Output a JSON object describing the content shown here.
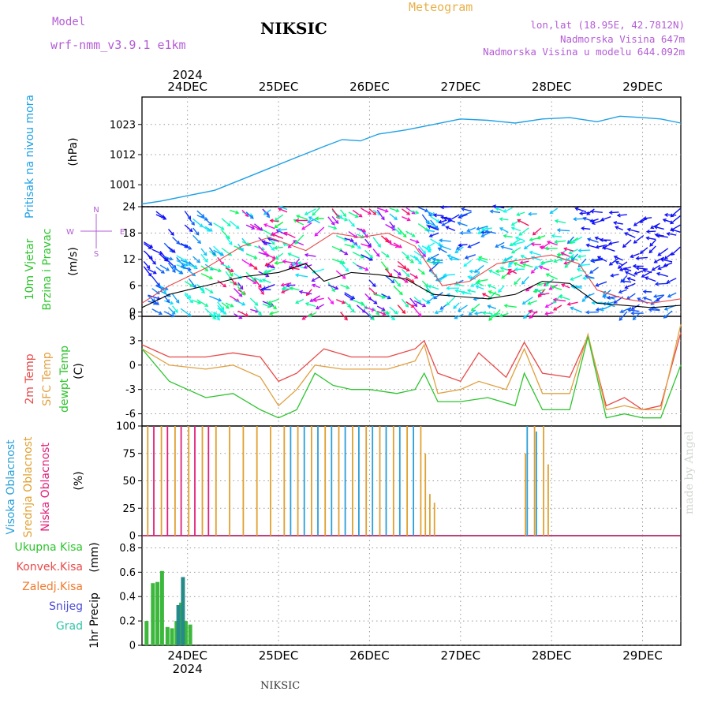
{
  "header": {
    "model_label": "Model",
    "model_value": "wrf-nmm_v3.9.1 e1km",
    "station": "NIKSIC",
    "meteogram": "Meteogram",
    "lonlat": "lon,lat (18.95E, 42.7812N)",
    "elevation": "Nadmorska Visina 647m",
    "elevation_model": "Nadmorska Visina u modelu 644.092m"
  },
  "footer": {
    "station": "NIKSIC",
    "credit": "made by Angel"
  },
  "time_axis": {
    "days": [
      "24DEC",
      "25DEC",
      "26DEC",
      "27DEC",
      "28DEC",
      "29DEC"
    ],
    "year": "2024",
    "start_offset_days": -0.5,
    "end_offset_days": 5.42
  },
  "colors": {
    "pressure": "#1ea0e6",
    "temp2m": "#e84a4a",
    "sfc": "#e0a040",
    "dewpt": "#2ec42e",
    "high_cloud": "#2a9fd8",
    "mid_cloud": "#e0a030",
    "low_cloud": "#e0207a",
    "precip_total": "#3cb83c",
    "precip_snow": "#268a8a",
    "compass": "#b45cd6"
  },
  "chart_data": [
    {
      "type": "line",
      "title": "",
      "ylabel": "Pritisak na nivou mora",
      "unit": "(hPa)",
      "yticks": [
        1001,
        1012,
        1023
      ],
      "ylim": [
        993,
        1033
      ],
      "grid": true,
      "series": [
        {
          "name": "Pritisak na nivou mora",
          "points": [
            [
              -0.5,
              994.0
            ],
            [
              -0.3,
              995.0
            ],
            [
              0.0,
              997.0
            ],
            [
              0.3,
              999.0
            ],
            [
              0.6,
              1003.0
            ],
            [
              0.9,
              1007.0
            ],
            [
              1.2,
              1011.0
            ],
            [
              1.5,
              1015.0
            ],
            [
              1.7,
              1017.5
            ],
            [
              1.9,
              1017.0
            ],
            [
              2.1,
              1019.5
            ],
            [
              2.4,
              1021.0
            ],
            [
              2.7,
              1023.0
            ],
            [
              3.0,
              1025.0
            ],
            [
              3.3,
              1024.5
            ],
            [
              3.6,
              1023.5
            ],
            [
              3.9,
              1025.0
            ],
            [
              4.2,
              1025.5
            ],
            [
              4.5,
              1024.0
            ],
            [
              4.75,
              1026.0
            ],
            [
              5.0,
              1025.5
            ],
            [
              5.2,
              1025.0
            ],
            [
              5.42,
              1023.5
            ]
          ]
        }
      ]
    },
    {
      "type": "line",
      "title": "",
      "ylabel": "10m Vjetar Brzina i Pravac",
      "unit": "(m/s)",
      "yticks": [
        0,
        6,
        12,
        18,
        24
      ],
      "ylim": [
        -1,
        24
      ],
      "grid": true,
      "compass_labels": [
        "N",
        "W",
        "E",
        "S"
      ],
      "series": [
        {
          "name": "Brzina",
          "points": [
            [
              -0.5,
              1.0
            ],
            [
              -0.2,
              4.0
            ],
            [
              0.2,
              6.0
            ],
            [
              0.6,
              8.0
            ],
            [
              1.0,
              9.0
            ],
            [
              1.3,
              11.0
            ],
            [
              1.5,
              7.0
            ],
            [
              1.8,
              9.0
            ],
            [
              2.1,
              8.5
            ],
            [
              2.4,
              7.5
            ],
            [
              2.7,
              4.0
            ],
            [
              3.0,
              3.5
            ],
            [
              3.3,
              3.0
            ],
            [
              3.6,
              4.0
            ],
            [
              3.9,
              7.0
            ],
            [
              4.2,
              6.5
            ],
            [
              4.5,
              2.0
            ],
            [
              4.8,
              1.5
            ],
            [
              5.1,
              1.0
            ],
            [
              5.42,
              1.5
            ]
          ]
        },
        {
          "name": "Udari",
          "points": [
            [
              -0.5,
              2.0
            ],
            [
              -0.2,
              6.0
            ],
            [
              0.2,
              10.0
            ],
            [
              0.6,
              15.0
            ],
            [
              0.9,
              17.0
            ],
            [
              1.3,
              14.0
            ],
            [
              1.6,
              18.0
            ],
            [
              1.9,
              17.0
            ],
            [
              2.2,
              18.0
            ],
            [
              2.5,
              15.0
            ],
            [
              2.8,
              6.0
            ],
            [
              3.1,
              7.0
            ],
            [
              3.4,
              11.0
            ],
            [
              3.7,
              12.0
            ],
            [
              4.0,
              13.0
            ],
            [
              4.3,
              11.0
            ],
            [
              4.5,
              5.0
            ],
            [
              4.8,
              3.0
            ],
            [
              5.1,
              2.0
            ],
            [
              5.42,
              3.0
            ]
          ]
        }
      ]
    },
    {
      "type": "line",
      "title": "",
      "ylabels": [
        "2m Temp",
        "SFC Temp",
        "dewpt Temp"
      ],
      "unit": "(C)",
      "yticks": [
        -6,
        -3,
        0,
        3,
        6
      ],
      "ylim": [
        -7.5,
        6
      ],
      "grid": true,
      "series": [
        {
          "name": "2m Temp",
          "points": [
            [
              -0.5,
              2.5
            ],
            [
              -0.2,
              1.0
            ],
            [
              0.2,
              1.0
            ],
            [
              0.5,
              1.5
            ],
            [
              0.8,
              1.0
            ],
            [
              1.0,
              -2.0
            ],
            [
              1.2,
              -1.0
            ],
            [
              1.5,
              2.0
            ],
            [
              1.8,
              1.0
            ],
            [
              2.2,
              1.0
            ],
            [
              2.5,
              2.0
            ],
            [
              2.6,
              3.0
            ],
            [
              2.75,
              -1.0
            ],
            [
              3.0,
              -2.0
            ],
            [
              3.2,
              1.5
            ],
            [
              3.5,
              -1.5
            ],
            [
              3.7,
              2.8
            ],
            [
              3.9,
              -1.0
            ],
            [
              4.2,
              -1.5
            ],
            [
              4.4,
              3.5
            ],
            [
              4.6,
              -5.0
            ],
            [
              4.8,
              -4.0
            ],
            [
              5.0,
              -5.5
            ],
            [
              5.2,
              -5.0
            ],
            [
              5.42,
              4.0
            ]
          ]
        },
        {
          "name": "SFC Temp",
          "points": [
            [
              -0.5,
              2.0
            ],
            [
              -0.2,
              0.0
            ],
            [
              0.2,
              -0.5
            ],
            [
              0.5,
              0.0
            ],
            [
              0.8,
              -1.5
            ],
            [
              1.0,
              -5.0
            ],
            [
              1.2,
              -3.0
            ],
            [
              1.4,
              0.0
            ],
            [
              1.7,
              -0.5
            ],
            [
              2.0,
              -0.5
            ],
            [
              2.2,
              -0.5
            ],
            [
              2.5,
              0.5
            ],
            [
              2.6,
              2.5
            ],
            [
              2.75,
              -3.5
            ],
            [
              3.0,
              -3.0
            ],
            [
              3.2,
              -2.0
            ],
            [
              3.5,
              -3.0
            ],
            [
              3.7,
              2.0
            ],
            [
              3.9,
              -3.5
            ],
            [
              4.2,
              -3.5
            ],
            [
              4.4,
              3.8
            ],
            [
              4.6,
              -5.5
            ],
            [
              4.8,
              -5.0
            ],
            [
              5.0,
              -5.5
            ],
            [
              5.2,
              -5.5
            ],
            [
              5.42,
              5.0
            ]
          ]
        },
        {
          "name": "dewpt Temp",
          "points": [
            [
              -0.5,
              2.0
            ],
            [
              -0.2,
              -2.0
            ],
            [
              0.2,
              -4.0
            ],
            [
              0.5,
              -3.5
            ],
            [
              0.8,
              -5.5
            ],
            [
              1.0,
              -6.5
            ],
            [
              1.2,
              -5.5
            ],
            [
              1.4,
              -1.0
            ],
            [
              1.6,
              -2.5
            ],
            [
              1.8,
              -3.0
            ],
            [
              2.0,
              -3.0
            ],
            [
              2.3,
              -3.5
            ],
            [
              2.5,
              -3.0
            ],
            [
              2.6,
              -1.0
            ],
            [
              2.75,
              -4.5
            ],
            [
              3.0,
              -4.5
            ],
            [
              3.3,
              -4.0
            ],
            [
              3.6,
              -5.0
            ],
            [
              3.7,
              -1.0
            ],
            [
              3.9,
              -5.5
            ],
            [
              4.2,
              -5.5
            ],
            [
              4.4,
              3.5
            ],
            [
              4.6,
              -6.5
            ],
            [
              4.8,
              -6.0
            ],
            [
              5.0,
              -6.5
            ],
            [
              5.2,
              -6.5
            ],
            [
              5.42,
              0.0
            ]
          ]
        }
      ]
    },
    {
      "type": "bar",
      "title": "",
      "ylabels": [
        "Visoka Oblacnost",
        "Srednja Oblacnost",
        "Niska Oblacnost"
      ],
      "unit": "(%)",
      "yticks": [
        0,
        25,
        50,
        75,
        100
      ],
      "ylim": [
        0,
        100
      ],
      "grid": true,
      "series": [
        {
          "name": "Visoka Oblacnost",
          "x": [
            1.15,
            1.3,
            1.45,
            1.6,
            1.75,
            1.9,
            2.05,
            2.2,
            2.35,
            2.5,
            3.75,
            3.85
          ],
          "values": [
            100,
            100,
            100,
            100,
            100,
            100,
            100,
            100,
            100,
            100,
            100,
            95
          ]
        },
        {
          "name": "Srednja Oblacnost",
          "x": [
            -0.45,
            -0.3,
            -0.15,
            0.0,
            0.15,
            0.3,
            0.45,
            0.6,
            0.75,
            0.9,
            1.05,
            1.2,
            1.35,
            1.5,
            1.65,
            1.8,
            1.95,
            2.1,
            2.25,
            2.4,
            2.55,
            2.6,
            2.65,
            2.7,
            3.7,
            3.8,
            3.9,
            3.95
          ],
          "values": [
            100,
            100,
            100,
            100,
            100,
            100,
            100,
            100,
            100,
            100,
            100,
            100,
            100,
            100,
            100,
            100,
            100,
            100,
            100,
            100,
            100,
            75,
            38,
            30,
            75,
            100,
            100,
            65
          ]
        },
        {
          "name": "Niska Oblacnost",
          "x": [
            -0.4,
            -0.25,
            -0.1,
            0.05,
            0.2
          ],
          "values": [
            100,
            100,
            100,
            100,
            100
          ]
        }
      ]
    },
    {
      "type": "bar",
      "title": "",
      "ylabels": [
        "Ukupna Kisa",
        "Konvek.Kisa",
        "Zaledj.Kisa",
        "Snijeg",
        "Grad"
      ],
      "ylabel": "1hr Precip",
      "unit": "(mm)",
      "yticks": [
        0,
        0.2,
        0.4,
        0.6,
        0.8
      ],
      "ylim": [
        0,
        0.9
      ],
      "grid": true,
      "series": [
        {
          "name": "Ukupna Kisa",
          "x": [
            -0.45,
            -0.38,
            -0.33,
            -0.28,
            -0.22,
            -0.17,
            -0.12,
            -0.07,
            -0.02,
            0.03
          ],
          "values": [
            0.2,
            0.51,
            0.52,
            0.61,
            0.15,
            0.14,
            0.2,
            0.35,
            0.2,
            0.17
          ]
        },
        {
          "name": "Snijeg",
          "x": [
            -0.1,
            -0.05
          ],
          "values": [
            0.33,
            0.56
          ]
        }
      ]
    }
  ]
}
